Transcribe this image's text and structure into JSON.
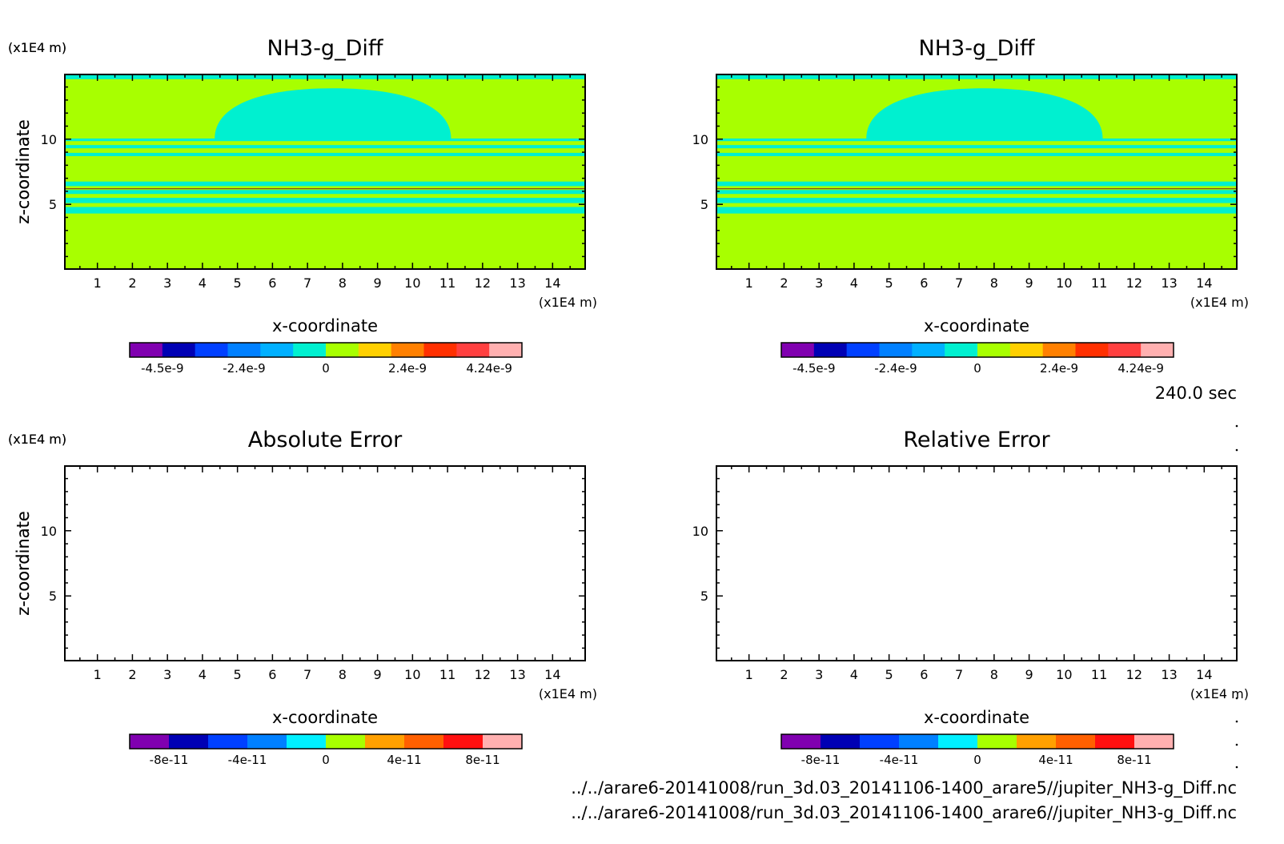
{
  "figure": {
    "time_label": "240.0 sec",
    "file_paths": [
      "../../arare6-20141008/run_3d.03_20141106-1400_arare5//jupiter_NH3-g_Diff.nc",
      "../../arare6-20141008/run_3d.03_20141106-1400_arare6//jupiter_NH3-g_Diff.nc"
    ]
  },
  "chart_data": [
    {
      "type": "heatmap",
      "title": "NH3-g_Diff",
      "xlabel": "x-coordinate",
      "ylabel": "z-coordinate",
      "x_unit": "(x1E4 m)",
      "z_unit": "(x1E4 m)",
      "xlim": [
        0.07,
        14.93
      ],
      "ylim": [
        0.04,
        14.96
      ],
      "x_ticks": [
        1,
        2,
        3,
        4,
        5,
        6,
        7,
        8,
        9,
        10,
        11,
        12,
        13,
        14
      ],
      "y_ticks": [
        5,
        10
      ],
      "colorbar": {
        "colors": [
          "#8000b0",
          "#0000b4",
          "#0040ff",
          "#0080ff",
          "#00b0ff",
          "#00f0d0",
          "#a8ff00",
          "#ffd000",
          "#ff8000",
          "#ff3000",
          "#ff4040",
          "#ffb0b0"
        ],
        "labels": [
          "-4.5e-9",
          "-2.4e-9",
          "0",
          "2.4e-9",
          "4.24e-9"
        ]
      },
      "regions": [
        {
          "level": 0,
          "z": [
            0.04,
            14.96
          ],
          "x": [
            0.07,
            14.93
          ]
        },
        {
          "level": -1,
          "z": [
            4.3,
            4.8
          ],
          "x": [
            0.07,
            14.93
          ]
        },
        {
          "level": -1,
          "z": [
            5.1,
            5.5
          ],
          "x": [
            0.07,
            14.93
          ]
        },
        {
          "level": -1,
          "z": [
            5.8,
            6.1
          ],
          "x": [
            0.07,
            14.93
          ]
        },
        {
          "level": -1,
          "z": [
            6.4,
            6.75
          ],
          "x": [
            0.07,
            14.93
          ]
        },
        {
          "level": -1,
          "z": [
            8.7,
            8.95
          ],
          "x": [
            0.07,
            14.93
          ]
        },
        {
          "level": -1,
          "z": [
            9.3,
            9.55
          ],
          "x": [
            0.07,
            14.93
          ]
        },
        {
          "level": -1,
          "z": [
            9.85,
            10.05
          ],
          "x": [
            0.07,
            14.93
          ]
        },
        {
          "level": -1,
          "z": [
            14.6,
            14.96
          ],
          "x": [
            0.07,
            14.93
          ]
        },
        {
          "level": -1,
          "dome": true,
          "x": [
            4.35,
            11.1
          ],
          "z": [
            10.05,
            13.9
          ]
        }
      ]
    },
    {
      "type": "heatmap",
      "title": "NH3-g_Diff",
      "xlabel": "x-coordinate",
      "ylabel": "z-coordinate",
      "x_unit": "(x1E4 m)",
      "z_unit": "(x1E4 m)",
      "xlim": [
        0.07,
        14.93
      ],
      "ylim": [
        0.04,
        14.96
      ],
      "x_ticks": [
        1,
        2,
        3,
        4,
        5,
        6,
        7,
        8,
        9,
        10,
        11,
        12,
        13,
        14
      ],
      "y_ticks": [
        5,
        10
      ],
      "colorbar": {
        "colors": [
          "#8000b0",
          "#0000b4",
          "#0040ff",
          "#0080ff",
          "#00b0ff",
          "#00f0d0",
          "#a8ff00",
          "#ffd000",
          "#ff8000",
          "#ff3000",
          "#ff4040",
          "#ffb0b0"
        ],
        "labels": [
          "-4.5e-9",
          "-2.4e-9",
          "0",
          "2.4e-9",
          "4.24e-9"
        ]
      },
      "regions": [
        {
          "level": 0,
          "z": [
            0.04,
            14.96
          ],
          "x": [
            0.07,
            14.93
          ]
        },
        {
          "level": -1,
          "z": [
            4.3,
            4.8
          ],
          "x": [
            0.07,
            14.93
          ]
        },
        {
          "level": -1,
          "z": [
            5.1,
            5.5
          ],
          "x": [
            0.07,
            14.93
          ]
        },
        {
          "level": -1,
          "z": [
            5.8,
            6.1
          ],
          "x": [
            0.07,
            14.93
          ]
        },
        {
          "level": -1,
          "z": [
            6.4,
            6.75
          ],
          "x": [
            0.07,
            14.93
          ]
        },
        {
          "level": -1,
          "z": [
            8.7,
            8.95
          ],
          "x": [
            0.07,
            14.93
          ]
        },
        {
          "level": -1,
          "z": [
            9.3,
            9.55
          ],
          "x": [
            0.07,
            14.93
          ]
        },
        {
          "level": -1,
          "z": [
            9.85,
            10.05
          ],
          "x": [
            0.07,
            14.93
          ]
        },
        {
          "level": -1,
          "z": [
            14.6,
            14.96
          ],
          "x": [
            0.07,
            14.93
          ]
        },
        {
          "level": -1,
          "dome": true,
          "x": [
            4.35,
            11.1
          ],
          "z": [
            10.05,
            13.9
          ]
        }
      ]
    },
    {
      "type": "heatmap",
      "title": "Absolute Error",
      "xlabel": "x-coordinate",
      "ylabel": "z-coordinate",
      "x_unit": "(x1E4 m)",
      "z_unit": "(x1E4 m)",
      "xlim": [
        0.07,
        14.93
      ],
      "ylim": [
        0.04,
        14.96
      ],
      "x_ticks": [
        1,
        2,
        3,
        4,
        5,
        6,
        7,
        8,
        9,
        10,
        11,
        12,
        13,
        14
      ],
      "y_ticks": [
        5,
        10
      ],
      "colorbar": {
        "colors": [
          "#8000b0",
          "#0000b4",
          "#0040ff",
          "#0080ff",
          "#00f0ff",
          "#a8ff00",
          "#ffa000",
          "#ff6000",
          "#ff1010",
          "#ffb0b0"
        ],
        "labels": [
          "-8e-11",
          "-4e-11",
          "0",
          "4e-11",
          "8e-11"
        ]
      },
      "regions": []
    },
    {
      "type": "heatmap",
      "title": "Relative Error",
      "xlabel": "x-coordinate",
      "ylabel": "z-coordinate",
      "x_unit": "(x1E4 m)",
      "z_unit": "(x1E4 m)",
      "xlim": [
        0.07,
        14.93
      ],
      "ylim": [
        0.04,
        14.96
      ],
      "x_ticks": [
        1,
        2,
        3,
        4,
        5,
        6,
        7,
        8,
        9,
        10,
        11,
        12,
        13,
        14
      ],
      "y_ticks": [
        5,
        10
      ],
      "colorbar": {
        "colors": [
          "#8000b0",
          "#0000b4",
          "#0040ff",
          "#0080ff",
          "#00f0ff",
          "#a8ff00",
          "#ffa000",
          "#ff6000",
          "#ff1010",
          "#ffb0b0"
        ],
        "labels": [
          "-8e-11",
          "-4e-11",
          "0",
          "4e-11",
          "8e-11"
        ]
      },
      "regions": []
    }
  ]
}
